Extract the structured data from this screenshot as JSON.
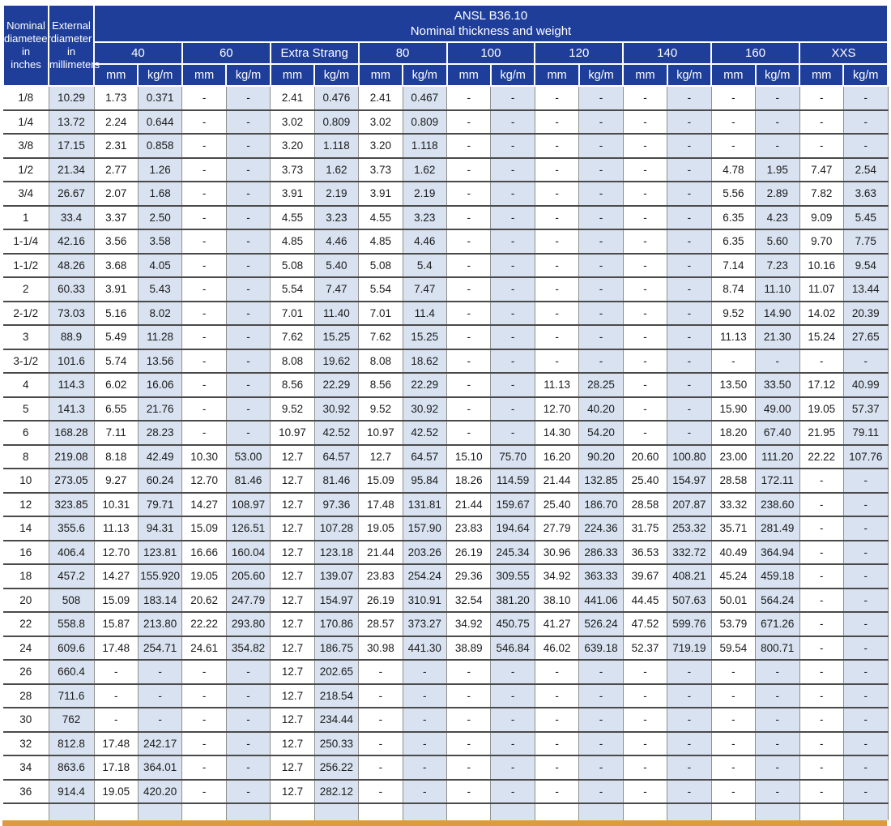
{
  "colors": {
    "header_blue": "#1e3e9a",
    "row_shade": "#d9e2f0",
    "accent_orange": "#e09a3e"
  },
  "header": {
    "col_nominal": "Nominal\ndiameteer\nin\ninches",
    "col_external": "External\ndiameter\nin\nmillimeters",
    "title": "ANSL B36.10\nNominal thickness and weight",
    "groups": [
      "40",
      "60",
      "Extra Strang",
      "80",
      "100",
      "120",
      "140",
      "160",
      "XXS"
    ],
    "unit_mm": "mm",
    "unit_kgm": "kg/m"
  },
  "rows": [
    [
      "1/8",
      "10.29",
      "1.73",
      "0.371",
      "-",
      "-",
      "2.41",
      "0.476",
      "2.41",
      "0.467",
      "-",
      "-",
      "-",
      "-",
      "-",
      "-",
      "-",
      "-",
      "-",
      "-"
    ],
    [
      "1/4",
      "13.72",
      "2.24",
      "0.644",
      "-",
      "-",
      "3.02",
      "0.809",
      "3.02",
      "0.809",
      "-",
      "-",
      "-",
      "-",
      "-",
      "-",
      "-",
      "-",
      "-",
      "-"
    ],
    [
      "3/8",
      "17.15",
      "2.31",
      "0.858",
      "-",
      "-",
      "3.20",
      "1.118",
      "3.20",
      "1.118",
      "-",
      "-",
      "-",
      "-",
      "-",
      "-",
      "-",
      "-",
      "-",
      "-"
    ],
    [
      "1/2",
      "21.34",
      "2.77",
      "1.26",
      "-",
      "-",
      "3.73",
      "1.62",
      "3.73",
      "1.62",
      "-",
      "-",
      "-",
      "-",
      "-",
      "-",
      "4.78",
      "1.95",
      "7.47",
      "2.54"
    ],
    [
      "3/4",
      "26.67",
      "2.07",
      "1.68",
      "-",
      "-",
      "3.91",
      "2.19",
      "3.91",
      "2.19",
      "-",
      "-",
      "-",
      "-",
      "-",
      "-",
      "5.56",
      "2.89",
      "7.82",
      "3.63"
    ],
    [
      "1",
      "33.4",
      "3.37",
      "2.50",
      "-",
      "-",
      "4.55",
      "3.23",
      "4.55",
      "3.23",
      "-",
      "-",
      "-",
      "-",
      "-",
      "-",
      "6.35",
      "4.23",
      "9.09",
      "5.45"
    ],
    [
      "1-1/4",
      "42.16",
      "3.56",
      "3.58",
      "-",
      "-",
      "4.85",
      "4.46",
      "4.85",
      "4.46",
      "-",
      "-",
      "-",
      "-",
      "-",
      "-",
      "6.35",
      "5.60",
      "9.70",
      "7.75"
    ],
    [
      "1-1/2",
      "48.26",
      "3.68",
      "4.05",
      "-",
      "-",
      "5.08",
      "5.40",
      "5.08",
      "5.4",
      "-",
      "-",
      "-",
      "-",
      "-",
      "-",
      "7.14",
      "7.23",
      "10.16",
      "9.54"
    ],
    [
      "2",
      "60.33",
      "3.91",
      "5.43",
      "-",
      "-",
      "5.54",
      "7.47",
      "5.54",
      "7.47",
      "-",
      "-",
      "-",
      "-",
      "-",
      "-",
      "8.74",
      "11.10",
      "11.07",
      "13.44"
    ],
    [
      "2-1/2",
      "73.03",
      "5.16",
      "8.02",
      "-",
      "-",
      "7.01",
      "11.40",
      "7.01",
      "11.4",
      "-",
      "-",
      "-",
      "-",
      "-",
      "-",
      "9.52",
      "14.90",
      "14.02",
      "20.39"
    ],
    [
      "3",
      "88.9",
      "5.49",
      "11.28",
      "-",
      "-",
      "7.62",
      "15.25",
      "7.62",
      "15.25",
      "-",
      "-",
      "-",
      "-",
      "-",
      "-",
      "11.13",
      "21.30",
      "15.24",
      "27.65"
    ],
    [
      "3-1/2",
      "101.6",
      "5.74",
      "13.56",
      "-",
      "-",
      "8.08",
      "19.62",
      "8.08",
      "18.62",
      "-",
      "-",
      "-",
      "-",
      "-",
      "-",
      "-",
      "-",
      "-",
      "-"
    ],
    [
      "4",
      "114.3",
      "6.02",
      "16.06",
      "-",
      "-",
      "8.56",
      "22.29",
      "8.56",
      "22.29",
      "-",
      "-",
      "11.13",
      "28.25",
      "-",
      "-",
      "13.50",
      "33.50",
      "17.12",
      "40.99"
    ],
    [
      "5",
      "141.3",
      "6.55",
      "21.76",
      "-",
      "-",
      "9.52",
      "30.92",
      "9.52",
      "30.92",
      "-",
      "-",
      "12.70",
      "40.20",
      "-",
      "-",
      "15.90",
      "49.00",
      "19.05",
      "57.37"
    ],
    [
      "6",
      "168.28",
      "7.11",
      "28.23",
      "-",
      "-",
      "10.97",
      "42.52",
      "10.97",
      "42.52",
      "-",
      "-",
      "14.30",
      "54.20",
      "-",
      "-",
      "18.20",
      "67.40",
      "21.95",
      "79.11"
    ],
    [
      "8",
      "219.08",
      "8.18",
      "42.49",
      "10.30",
      "53.00",
      "12.7",
      "64.57",
      "12.7",
      "64.57",
      "15.10",
      "75.70",
      "16.20",
      "90.20",
      "20.60",
      "100.80",
      "23.00",
      "111.20",
      "22.22",
      "107.76"
    ],
    [
      "10",
      "273.05",
      "9.27",
      "60.24",
      "12.70",
      "81.46",
      "12.7",
      "81.46",
      "15.09",
      "95.84",
      "18.26",
      "114.59",
      "21.44",
      "132.85",
      "25.40",
      "154.97",
      "28.58",
      "172.11",
      "-",
      "-"
    ],
    [
      "12",
      "323.85",
      "10.31",
      "79.71",
      "14.27",
      "108.97",
      "12.7",
      "97.36",
      "17.48",
      "131.81",
      "21.44",
      "159.67",
      "25.40",
      "186.70",
      "28.58",
      "207.87",
      "33.32",
      "238.60",
      "-",
      "-"
    ],
    [
      "14",
      "355.6",
      "11.13",
      "94.31",
      "15.09",
      "126.51",
      "12.7",
      "107.28",
      "19.05",
      "157.90",
      "23.83",
      "194.64",
      "27.79",
      "224.36",
      "31.75",
      "253.32",
      "35.71",
      "281.49",
      "-",
      "-"
    ],
    [
      "16",
      "406.4",
      "12.70",
      "123.81",
      "16.66",
      "160.04",
      "12.7",
      "123.18",
      "21.44",
      "203.26",
      "26.19",
      "245.34",
      "30.96",
      "286.33",
      "36.53",
      "332.72",
      "40.49",
      "364.94",
      "-",
      "-"
    ],
    [
      "18",
      "457.2",
      "14.27",
      "155.920",
      "19.05",
      "205.60",
      "12.7",
      "139.07",
      "23.83",
      "254.24",
      "29.36",
      "309.55",
      "34.92",
      "363.33",
      "39.67",
      "408.21",
      "45.24",
      "459.18",
      "-",
      "-"
    ],
    [
      "20",
      "508",
      "15.09",
      "183.14",
      "20.62",
      "247.79",
      "12.7",
      "154.97",
      "26.19",
      "310.91",
      "32.54",
      "381.20",
      "38.10",
      "441.06",
      "44.45",
      "507.63",
      "50.01",
      "564.24",
      "-",
      "-"
    ],
    [
      "22",
      "558.8",
      "15.87",
      "213.80",
      "22.22",
      "293.80",
      "12.7",
      "170.86",
      "28.57",
      "373.27",
      "34.92",
      "450.75",
      "41.27",
      "526.24",
      "47.52",
      "599.76",
      "53.79",
      "671.26",
      "-",
      "-"
    ],
    [
      "24",
      "609.6",
      "17.48",
      "254.71",
      "24.61",
      "354.82",
      "12.7",
      "186.75",
      "30.98",
      "441.30",
      "38.89",
      "546.84",
      "46.02",
      "639.18",
      "52.37",
      "719.19",
      "59.54",
      "800.71",
      "-",
      "-"
    ],
    [
      "26",
      "660.4",
      "-",
      "-",
      "-",
      "-",
      "12.7",
      "202.65",
      "-",
      "-",
      "-",
      "-",
      "-",
      "-",
      "-",
      "-",
      "-",
      "-",
      "-",
      "-"
    ],
    [
      "28",
      "711.6",
      "-",
      "-",
      "-",
      "-",
      "12.7",
      "218.54",
      "-",
      "-",
      "-",
      "-",
      "-",
      "-",
      "-",
      "-",
      "-",
      "-",
      "-",
      "-"
    ],
    [
      "30",
      "762",
      "-",
      "-",
      "-",
      "-",
      "12.7",
      "234.44",
      "-",
      "-",
      "-",
      "-",
      "-",
      "-",
      "-",
      "-",
      "-",
      "-",
      "-",
      "-"
    ],
    [
      "32",
      "812.8",
      "17.48",
      "242.17",
      "-",
      "-",
      "12.7",
      "250.33",
      "-",
      "-",
      "-",
      "-",
      "-",
      "-",
      "-",
      "-",
      "-",
      "-",
      "-",
      "-"
    ],
    [
      "34",
      "863.6",
      "17.18",
      "364.01",
      "-",
      "-",
      "12.7",
      "256.22",
      "-",
      "-",
      "-",
      "-",
      "-",
      "-",
      "-",
      "-",
      "-",
      "-",
      "-",
      "-"
    ],
    [
      "36",
      "914.4",
      "19.05",
      "420.20",
      "-",
      "-",
      "12.7",
      "282.12",
      "-",
      "-",
      "-",
      "-",
      "-",
      "-",
      "-",
      "-",
      "-",
      "-",
      "-",
      "-"
    ]
  ]
}
